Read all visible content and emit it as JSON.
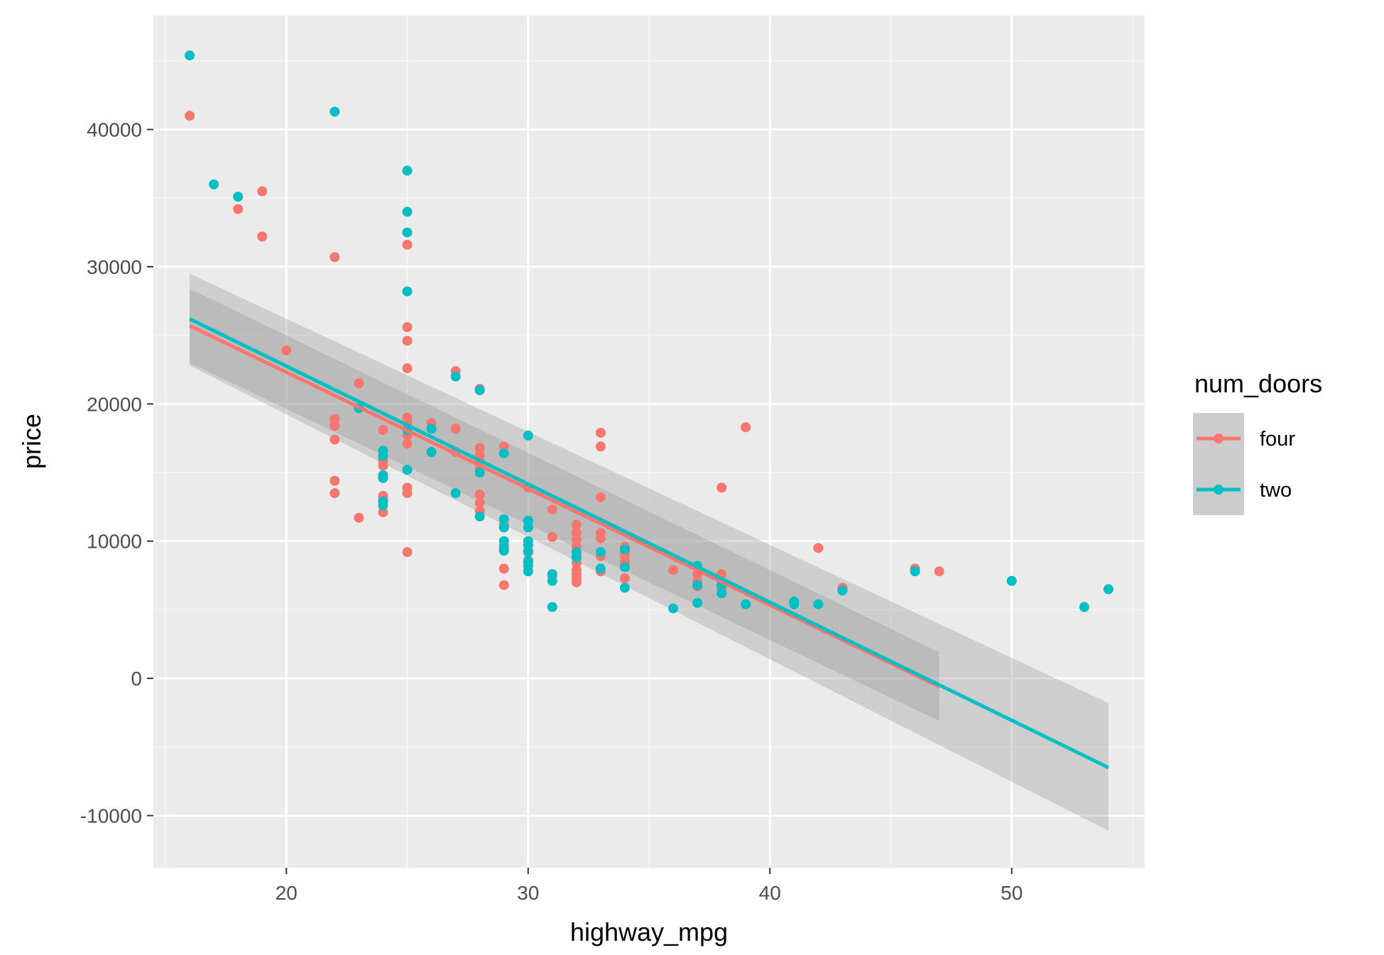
{
  "chart_data": {
    "type": "scatter",
    "title": "",
    "xlabel": "highway_mpg",
    "ylabel": "price",
    "xlim": [
      14.5,
      55.5
    ],
    "ylim": [
      -13800,
      48300
    ],
    "x_ticks": [
      20,
      30,
      40,
      50
    ],
    "y_ticks": [
      -10000,
      0,
      10000,
      20000,
      30000,
      40000
    ],
    "x_tick_labels": [
      "20",
      "30",
      "40",
      "50"
    ],
    "y_tick_labels": [
      "-10000",
      "0",
      "10000",
      "20000",
      "30000",
      "40000"
    ],
    "grid": true,
    "legend": {
      "title": "num_doors",
      "position": "right"
    },
    "colors": {
      "panel_background": "#ebebeb",
      "grid_major": "#ffffff",
      "grid_minor": "#f5f5f5",
      "ribbon": "#999999"
    },
    "series": [
      {
        "name": "four",
        "color": "#f8766d",
        "points": [
          [
            16,
            41000
          ],
          [
            18,
            34200
          ],
          [
            19,
            35500
          ],
          [
            19,
            32200
          ],
          [
            20,
            23900
          ],
          [
            22,
            30700
          ],
          [
            22,
            18900
          ],
          [
            22,
            18400
          ],
          [
            22,
            17400
          ],
          [
            22,
            14400
          ],
          [
            22,
            13500
          ],
          [
            23,
            21500
          ],
          [
            23,
            11700
          ],
          [
            24,
            18100
          ],
          [
            24,
            15900
          ],
          [
            24,
            15500
          ],
          [
            24,
            13300
          ],
          [
            24,
            13000
          ],
          [
            24,
            12100
          ],
          [
            25,
            31600
          ],
          [
            25,
            25600
          ],
          [
            25,
            24600
          ],
          [
            25,
            22600
          ],
          [
            25,
            19000
          ],
          [
            25,
            18600
          ],
          [
            25,
            17700
          ],
          [
            25,
            17100
          ],
          [
            25,
            13900
          ],
          [
            25,
            13500
          ],
          [
            25,
            9200
          ],
          [
            26,
            18600
          ],
          [
            26,
            16500
          ],
          [
            27,
            22400
          ],
          [
            27,
            18200
          ],
          [
            27,
            16500
          ],
          [
            28,
            21100
          ],
          [
            28,
            16800
          ],
          [
            28,
            16300
          ],
          [
            28,
            15800
          ],
          [
            28,
            15300
          ],
          [
            28,
            13400
          ],
          [
            28,
            12800
          ],
          [
            28,
            12200
          ],
          [
            29,
            16900
          ],
          [
            29,
            11200
          ],
          [
            29,
            9700
          ],
          [
            29,
            8000
          ],
          [
            29,
            6800
          ],
          [
            30,
            13900
          ],
          [
            30,
            11400
          ],
          [
            30,
            9300
          ],
          [
            30,
            8600
          ],
          [
            31,
            12300
          ],
          [
            31,
            10300
          ],
          [
            31,
            7500
          ],
          [
            32,
            11200
          ],
          [
            32,
            10600
          ],
          [
            32,
            10100
          ],
          [
            32,
            9600
          ],
          [
            32,
            8900
          ],
          [
            32,
            8400
          ],
          [
            32,
            7900
          ],
          [
            32,
            7600
          ],
          [
            32,
            7300
          ],
          [
            32,
            7000
          ],
          [
            33,
            17900
          ],
          [
            33,
            16900
          ],
          [
            33,
            13200
          ],
          [
            33,
            10600
          ],
          [
            33,
            10200
          ],
          [
            33,
            8900
          ],
          [
            33,
            7800
          ],
          [
            34,
            9600
          ],
          [
            34,
            9200
          ],
          [
            34,
            8900
          ],
          [
            34,
            8500
          ],
          [
            34,
            7300
          ],
          [
            36,
            7900
          ],
          [
            37,
            7600
          ],
          [
            37,
            7100
          ],
          [
            37,
            6700
          ],
          [
            38,
            13900
          ],
          [
            38,
            7600
          ],
          [
            38,
            7000
          ],
          [
            38,
            6500
          ],
          [
            39,
            18300
          ],
          [
            42,
            9500
          ],
          [
            43,
            6600
          ],
          [
            46,
            8000
          ],
          [
            47,
            7800
          ]
        ],
        "fit": {
          "x": [
            16,
            47
          ],
          "y": [
            25700,
            -600
          ],
          "ci_low": [
            23000,
            -3100
          ],
          "ci_high": [
            28400,
            1900
          ]
        }
      },
      {
        "name": "two",
        "color": "#00bfc4",
        "points": [
          [
            16,
            45400
          ],
          [
            17,
            36000
          ],
          [
            18,
            35100
          ],
          [
            22,
            41300
          ],
          [
            23,
            19700
          ],
          [
            24,
            16600
          ],
          [
            24,
            16200
          ],
          [
            24,
            14800
          ],
          [
            24,
            14600
          ],
          [
            24,
            12900
          ],
          [
            24,
            12600
          ],
          [
            25,
            37000
          ],
          [
            25,
            34000
          ],
          [
            25,
            32500
          ],
          [
            25,
            28200
          ],
          [
            25,
            18100
          ],
          [
            25,
            15200
          ],
          [
            26,
            18200
          ],
          [
            26,
            16500
          ],
          [
            27,
            22000
          ],
          [
            27,
            13500
          ],
          [
            28,
            21000
          ],
          [
            28,
            15000
          ],
          [
            28,
            11800
          ],
          [
            29,
            16400
          ],
          [
            29,
            11600
          ],
          [
            29,
            11000
          ],
          [
            29,
            10000
          ],
          [
            29,
            9500
          ],
          [
            29,
            9300
          ],
          [
            30,
            17700
          ],
          [
            30,
            11500
          ],
          [
            30,
            11000
          ],
          [
            30,
            10000
          ],
          [
            30,
            9700
          ],
          [
            30,
            9200
          ],
          [
            30,
            8500
          ],
          [
            30,
            8200
          ],
          [
            30,
            7800
          ],
          [
            31,
            7600
          ],
          [
            31,
            7100
          ],
          [
            31,
            5200
          ],
          [
            32,
            9200
          ],
          [
            32,
            8800
          ],
          [
            33,
            9200
          ],
          [
            33,
            8000
          ],
          [
            34,
            9400
          ],
          [
            34,
            8100
          ],
          [
            34,
            6600
          ],
          [
            36,
            5100
          ],
          [
            37,
            8200
          ],
          [
            37,
            6800
          ],
          [
            37,
            5500
          ],
          [
            38,
            6800
          ],
          [
            38,
            6200
          ],
          [
            39,
            5400
          ],
          [
            41,
            5600
          ],
          [
            41,
            5400
          ],
          [
            42,
            5400
          ],
          [
            43,
            6400
          ],
          [
            46,
            7800
          ],
          [
            50,
            7100
          ],
          [
            53,
            5200
          ],
          [
            54,
            6500
          ]
        ],
        "fit": {
          "x": [
            16,
            54
          ],
          "y": [
            26200,
            -6500
          ],
          "ci_low": [
            22800,
            -11100
          ],
          "ci_high": [
            29500,
            -1800
          ]
        }
      }
    ]
  }
}
